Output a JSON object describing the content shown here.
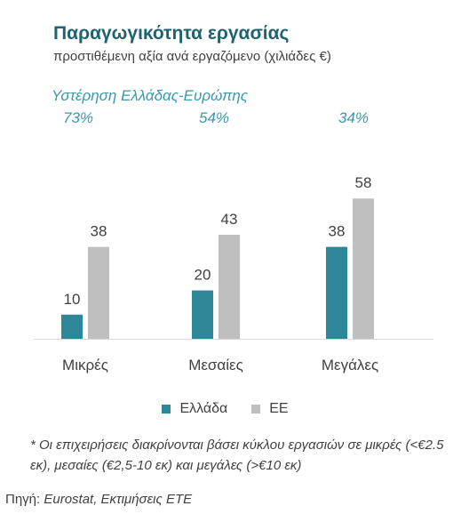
{
  "title": "Παραγωγικότητα εργασίας",
  "subtitle": "προστιθέμενη αξία ανά εργαζόμενο (χιλιάδες €)",
  "gap_title": "Υστέρηση Ελλάδας-Ευρώπης",
  "gaps": [
    "73%",
    "54%",
    "34%"
  ],
  "colors": {
    "greece": "#2e8699",
    "eu": "#bfbfbf",
    "title": "#1d6370",
    "gap": "#3a97ad"
  },
  "chart_data": {
    "type": "bar",
    "categories": [
      "Μικρές",
      "Μεσαίες",
      "Μεγάλες"
    ],
    "series": [
      {
        "name": "Ελλάδα",
        "values": [
          10,
          20,
          38
        ]
      },
      {
        "name": "ΕΕ",
        "values": [
          38,
          43,
          58
        ]
      }
    ],
    "ylim": [
      0,
      60
    ],
    "grid": false,
    "legend": "bottom"
  },
  "footnote": "* Οι επιχειρήσεις διακρίνονται βάσει κύκλου εργασιών σε μικρές (<€2.5 εκ), μεσαίες (€2,5-10 εκ) και μεγάλες (>€10 εκ)",
  "source_label": "Πηγή:",
  "source_text": "Eurostat, Εκτιμήσεις ΕΤΕ"
}
